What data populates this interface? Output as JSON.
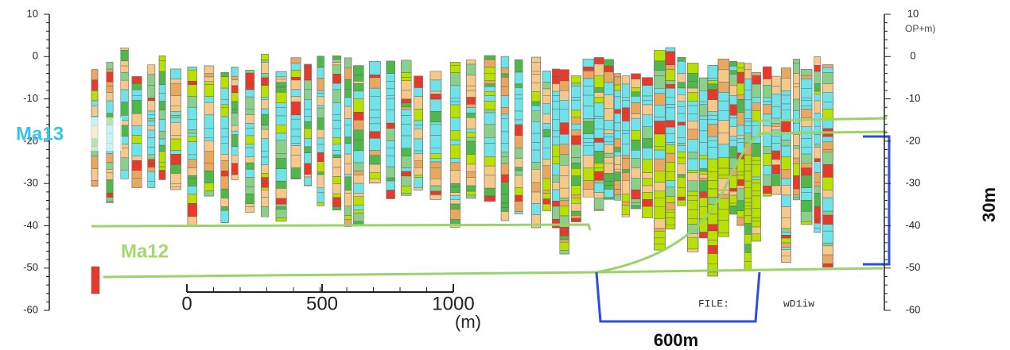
{
  "left_axis": {
    "ticks": [
      "10",
      "0",
      "-10",
      "-20",
      "-30",
      "-40",
      "-50",
      "-60"
    ]
  },
  "right_axis": {
    "label": "OP+m)",
    "ticks": [
      "10",
      "0",
      "-10",
      "-20",
      "-30",
      "-40",
      "-50",
      "-60"
    ]
  },
  "scale_bar": {
    "ticks": [
      "0",
      "500",
      "1000"
    ],
    "unit": "(m)"
  },
  "labels": {
    "upper_layer": "Ma13",
    "lower_layer": "Ma12",
    "thickness": "30m",
    "width": "600m",
    "file": "FILE:",
    "file_name": "wD1iw"
  }
}
